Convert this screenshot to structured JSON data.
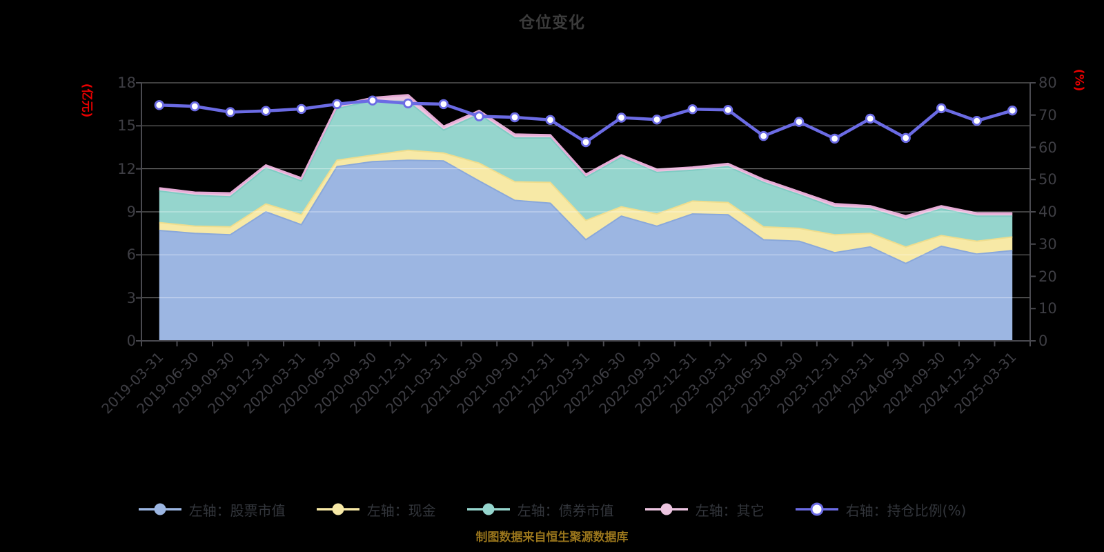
{
  "title": "仓位变化",
  "footer": "制图数据来自恒生聚源数据库",
  "colors": {
    "background": "#000000",
    "title": "#3b3b3b",
    "axis_line": "#4a4a50",
    "tick_label": "#3e3e44",
    "unit_label": "#e60000",
    "grid_line": "rgba(255,255,255,0.5)",
    "legend_text": "#33363c",
    "footer_text": "#9a761c",
    "ratio_line": "#6b6be4"
  },
  "left_axis": {
    "unit": "(亿元)",
    "min": 0,
    "max": 18,
    "step": 3,
    "ticks": [
      "0",
      "3",
      "6",
      "9",
      "12",
      "15",
      "18"
    ]
  },
  "right_axis": {
    "unit": "(%)",
    "min": 0,
    "max": 80,
    "step": 10,
    "ticks": [
      "0",
      "10",
      "20",
      "30",
      "40",
      "50",
      "60",
      "70",
      "80"
    ]
  },
  "chart_data": {
    "type": "area",
    "title": "仓位变化",
    "stacked": true,
    "grid": "horizontal",
    "legend_position": "bottom",
    "left_ylim": [
      0,
      18
    ],
    "right_ylim": [
      0,
      80
    ],
    "categories": [
      "2019-03-31",
      "2019-06-30",
      "2019-09-30",
      "2019-12-31",
      "2020-03-31",
      "2020-06-30",
      "2020-09-30",
      "2020-12-31",
      "2021-03-31",
      "2021-06-30",
      "2021-09-30",
      "2021-12-31",
      "2022-03-31",
      "2022-06-30",
      "2022-09-30",
      "2022-12-31",
      "2023-03-31",
      "2023-06-30",
      "2023-09-30",
      "2023-12-31",
      "2024-03-31",
      "2024-06-30",
      "2024-09-30",
      "2024-12-31",
      "2025-03-31"
    ],
    "series": [
      {
        "name": "左轴：股票市值",
        "type": "area",
        "axis": "left",
        "color": "#9cb6e2",
        "edge": "#8aa8da",
        "values": [
          7.7,
          7.5,
          7.4,
          9.0,
          8.1,
          12.15,
          12.5,
          12.6,
          12.55,
          11.15,
          9.8,
          9.6,
          7.05,
          8.7,
          8.0,
          8.85,
          8.8,
          7.05,
          6.95,
          6.15,
          6.55,
          5.4,
          6.6,
          6.05,
          6.3
        ]
      },
      {
        "name": "左轴：现金",
        "type": "area",
        "axis": "left",
        "color": "#f7e9a6",
        "edge": "#efdd8d",
        "values": [
          0.55,
          0.5,
          0.55,
          0.55,
          0.7,
          0.45,
          0.45,
          0.7,
          0.55,
          1.25,
          1.3,
          1.45,
          1.35,
          0.65,
          0.85,
          0.9,
          0.85,
          0.9,
          0.9,
          1.25,
          0.95,
          1.15,
          0.75,
          0.9,
          0.95
        ]
      },
      {
        "name": "左轴：债券市值",
        "type": "area",
        "axis": "left",
        "color": "#95d5cd",
        "edge": "#7fccc3",
        "values": [
          2.2,
          2.15,
          2.1,
          2.5,
          2.35,
          3.6,
          3.8,
          3.4,
          1.6,
          3.4,
          3.05,
          3.1,
          3.0,
          3.45,
          2.9,
          2.15,
          2.5,
          3.1,
          2.35,
          1.9,
          1.7,
          1.9,
          1.85,
          1.75,
          1.45
        ]
      },
      {
        "name": "左轴：其它",
        "type": "area",
        "axis": "left",
        "color": "#ecc4e0",
        "edge": "#e6abd6",
        "values": [
          0.2,
          0.2,
          0.25,
          0.2,
          0.2,
          0.2,
          0.2,
          0.45,
          0.25,
          0.25,
          0.25,
          0.2,
          0.2,
          0.15,
          0.2,
          0.2,
          0.2,
          0.2,
          0.2,
          0.25,
          0.2,
          0.25,
          0.2,
          0.2,
          0.2
        ]
      },
      {
        "name": "右轴：持仓比例(%)",
        "type": "line",
        "axis": "right",
        "color": "#6b6be4",
        "marker": "white-circle",
        "values": [
          73.1,
          72.7,
          70.9,
          71.3,
          71.9,
          73.4,
          74.5,
          73.6,
          73.4,
          69.6,
          69.3,
          68.5,
          61.6,
          69.2,
          68.6,
          71.8,
          71.6,
          63.5,
          67.9,
          62.7,
          68.9,
          62.9,
          72.1,
          68.2,
          71.4
        ]
      }
    ]
  }
}
